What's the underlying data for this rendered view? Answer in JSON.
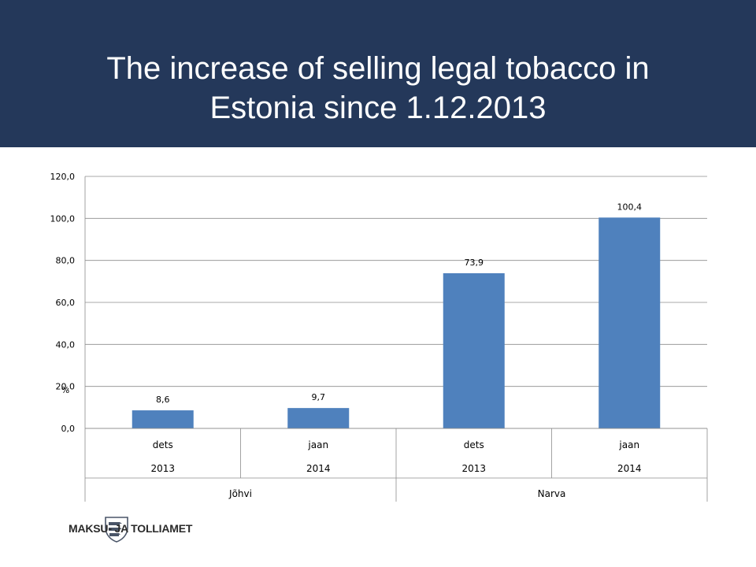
{
  "header": {
    "title": "The increase of selling legal tobacco in\nEstonia since 1.12.2013",
    "background": "#24385a"
  },
  "chart_data": {
    "type": "bar",
    "title": "The increase of selling legal tobacco in Estonia since 1.12.2013",
    "ylabel": "%",
    "ylim": [
      0,
      120
    ],
    "yticks": [
      "0,0",
      "20,0",
      "40,0",
      "60,0",
      "80,0",
      "100,0",
      "120,0"
    ],
    "grid": true,
    "bar_color": "#4f81bd",
    "categories": [
      {
        "month": "dets",
        "year": "2013",
        "group": "Jõhvi"
      },
      {
        "month": "jaan",
        "year": "2014",
        "group": "Jõhvi"
      },
      {
        "month": "dets",
        "year": "2013",
        "group": "Narva"
      },
      {
        "month": "jaan",
        "year": "2014",
        "group": "Narva"
      }
    ],
    "groups": [
      "Jõhvi",
      "Narva"
    ],
    "values": [
      8.6,
      9.7,
      73.9,
      100.4
    ],
    "data_labels": [
      "8,6",
      "9,7",
      "73,9",
      "100,4"
    ]
  },
  "footer": {
    "logo_text": "MAKSU- JA TOLLIAMET",
    "logo_icon": "three-lions-shield-icon"
  }
}
